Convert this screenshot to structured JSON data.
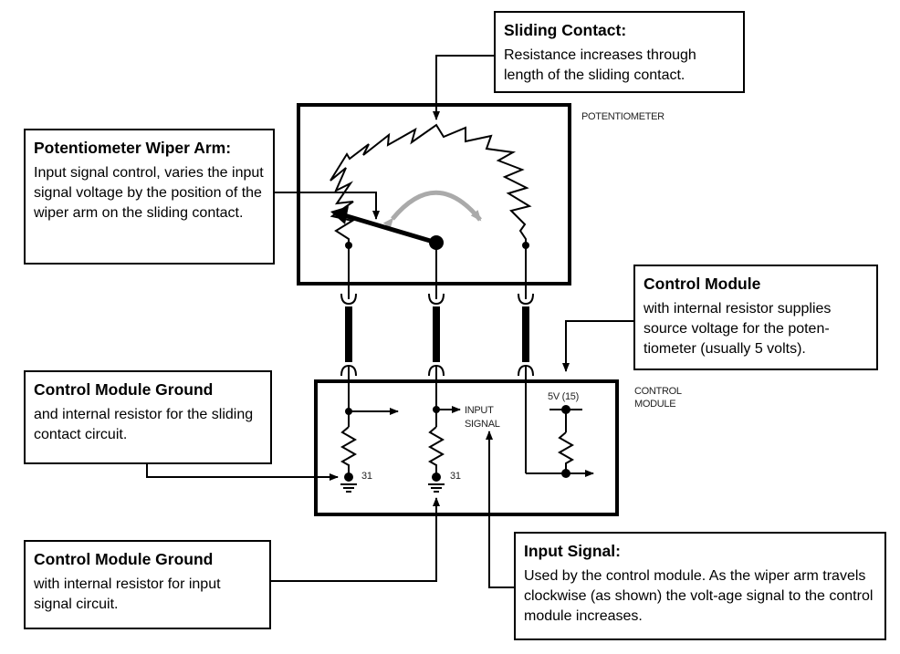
{
  "callouts": {
    "sliding_contact": {
      "title": "Sliding Contact:",
      "text": "Resistance increases through length of the sliding contact."
    },
    "wiper_arm": {
      "title": "Potentiometer Wiper Arm:",
      "text": "Input signal control, varies the input signal voltage by the position of the wiper arm on the sliding contact."
    },
    "control_module": {
      "title": "Control Module",
      "text": "with internal resistor supplies source voltage for the poten-tiometer (usually 5 volts)."
    },
    "ground_sliding": {
      "title": "Control Module Ground",
      "text": "and internal resistor for the sliding contact circuit."
    },
    "ground_input": {
      "title": "Control Module Ground",
      "text": "with internal resistor for input signal circuit."
    },
    "input_signal": {
      "title": "Input Signal:",
      "text": "Used by the control module. As the wiper arm travels clockwise (as shown) the volt-age signal to the control module increases."
    }
  },
  "labels": {
    "potentiometer": "POTENTIOMETER",
    "control_module_line1": "CONTROL",
    "control_module_line2": "MODULE",
    "input_signal_line1": "INPUT",
    "input_signal_line2": "SIGNAL",
    "supply": "5V (15)",
    "ground_left": "31",
    "ground_mid": "31"
  }
}
